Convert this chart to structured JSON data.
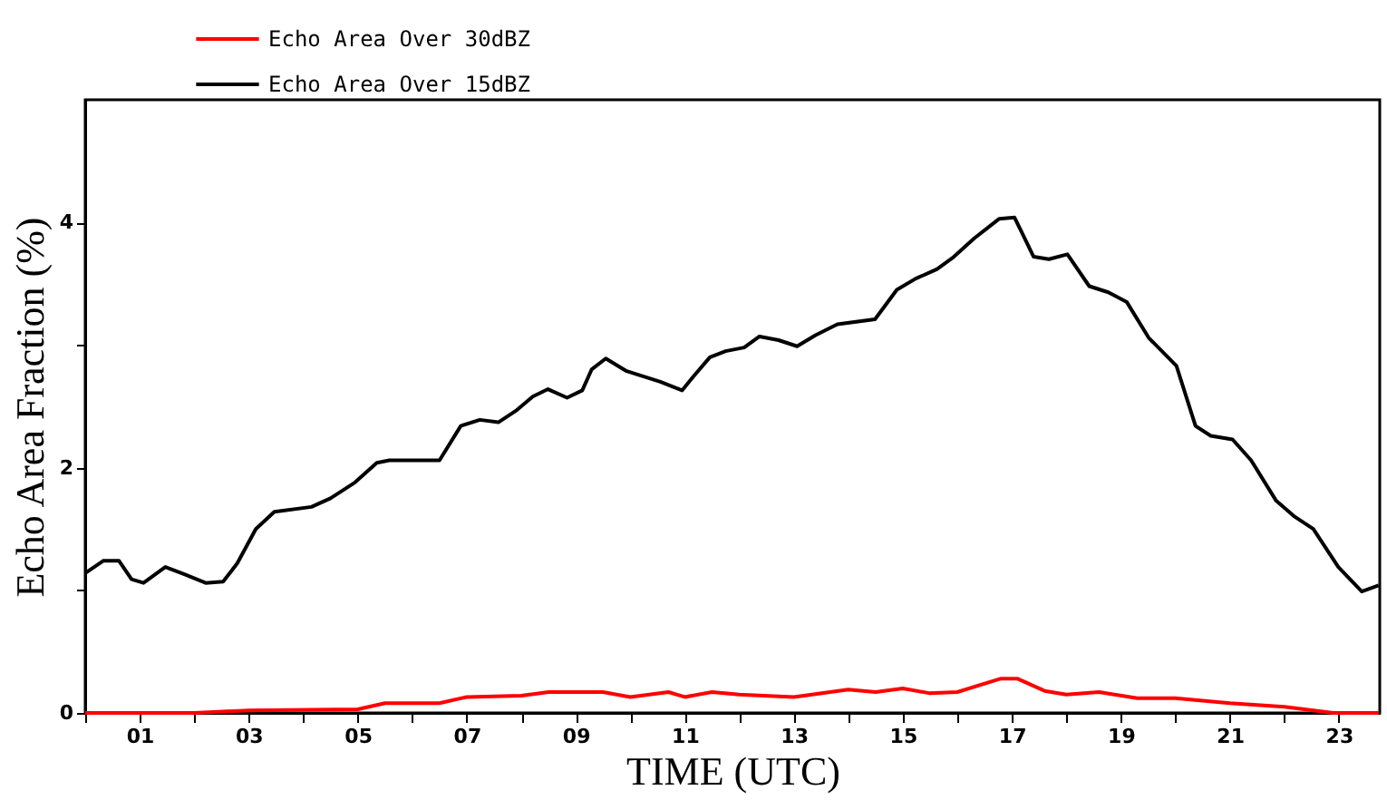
{
  "chart_data": {
    "type": "line",
    "xlabel": "TIME (UTC)",
    "ylabel": "Echo Area Fraction (%)",
    "xlim": [
      0,
      23.75
    ],
    "ylim": [
      0,
      5
    ],
    "xticks": [
      {
        "value": 0,
        "label": null
      },
      {
        "value": 1,
        "label": "01"
      },
      {
        "value": 2,
        "label": null
      },
      {
        "value": 3,
        "label": "03"
      },
      {
        "value": 4,
        "label": null
      },
      {
        "value": 5,
        "label": "05"
      },
      {
        "value": 6,
        "label": null
      },
      {
        "value": 7,
        "label": "07"
      },
      {
        "value": 8,
        "label": null
      },
      {
        "value": 9,
        "label": "09"
      },
      {
        "value": 10,
        "label": null
      },
      {
        "value": 11,
        "label": "11"
      },
      {
        "value": 12,
        "label": null
      },
      {
        "value": 13,
        "label": "13"
      },
      {
        "value": 14,
        "label": null
      },
      {
        "value": 15,
        "label": "15"
      },
      {
        "value": 16,
        "label": null
      },
      {
        "value": 17,
        "label": "17"
      },
      {
        "value": 18,
        "label": null
      },
      {
        "value": 19,
        "label": "19"
      },
      {
        "value": 20,
        "label": null
      },
      {
        "value": 21,
        "label": "21"
      },
      {
        "value": 22,
        "label": null
      },
      {
        "value": 23,
        "label": "23"
      }
    ],
    "yticks": [
      0,
      {
        "value": 1,
        "label": null
      },
      2,
      {
        "value": 3,
        "label": null
      },
      4
    ],
    "grid": false,
    "legend": "top left",
    "line_style": "solid",
    "marker": "none",
    "series": [
      {
        "name": "Echo Area Over 30dBZ",
        "color": "#ff0000",
        "x": [
          0,
          2,
          3,
          5,
          5.5,
          6.5,
          7,
          8,
          8.5,
          9.5,
          10,
          10.7,
          11,
          11.5,
          12,
          13,
          14,
          14.5,
          15,
          15.5,
          16,
          16.8,
          17.1,
          17.6,
          18,
          18.6,
          19.3,
          20,
          21,
          22,
          22.9,
          23.73
        ],
        "values": [
          0.0,
          0.0,
          0.02,
          0.03,
          0.08,
          0.08,
          0.13,
          0.14,
          0.17,
          0.17,
          0.13,
          0.17,
          0.13,
          0.17,
          0.15,
          0.13,
          0.19,
          0.17,
          0.2,
          0.16,
          0.17,
          0.28,
          0.28,
          0.18,
          0.15,
          0.17,
          0.12,
          0.12,
          0.08,
          0.05,
          0.0,
          0.0
        ]
      },
      {
        "name": "Echo Area Over 15dBZ",
        "color": "#000000",
        "x": [
          0,
          0.33,
          0.62,
          0.85,
          1.07,
          1.47,
          1.82,
          2.21,
          2.53,
          2.79,
          3.13,
          3.47,
          4.15,
          4.5,
          4.95,
          5.35,
          5.58,
          6.5,
          6.89,
          7.24,
          7.58,
          7.92,
          8.21,
          8.49,
          8.84,
          9.12,
          9.29,
          9.55,
          9.92,
          10.55,
          10.95,
          11.17,
          11.46,
          11.75,
          12.09,
          12.37,
          12.72,
          13.06,
          13.4,
          13.8,
          14.49,
          14.89,
          15.23,
          15.63,
          15.91,
          16.31,
          16.77,
          17.05,
          17.4,
          17.68,
          18.02,
          18.42,
          18.77,
          19.11,
          19.51,
          20.02,
          20.37,
          20.65,
          21.05,
          21.39,
          21.85,
          22.19,
          22.53,
          22.99,
          23.42,
          23.73
        ],
        "values": [
          1.14,
          1.24,
          1.24,
          1.09,
          1.06,
          1.19,
          1.13,
          1.06,
          1.07,
          1.22,
          1.5,
          1.64,
          1.68,
          1.75,
          1.88,
          2.04,
          2.06,
          2.06,
          2.34,
          2.39,
          2.37,
          2.47,
          2.58,
          2.64,
          2.57,
          2.63,
          2.8,
          2.89,
          2.79,
          2.7,
          2.63,
          2.75,
          2.9,
          2.95,
          2.98,
          3.07,
          3.04,
          2.99,
          3.08,
          3.17,
          3.21,
          3.45,
          3.54,
          3.62,
          3.71,
          3.87,
          4.03,
          4.04,
          3.72,
          3.7,
          3.74,
          3.48,
          3.43,
          3.35,
          3.06,
          2.83,
          2.34,
          2.26,
          2.23,
          2.06,
          1.73,
          1.6,
          1.5,
          1.19,
          0.99,
          1.04
        ]
      }
    ]
  }
}
